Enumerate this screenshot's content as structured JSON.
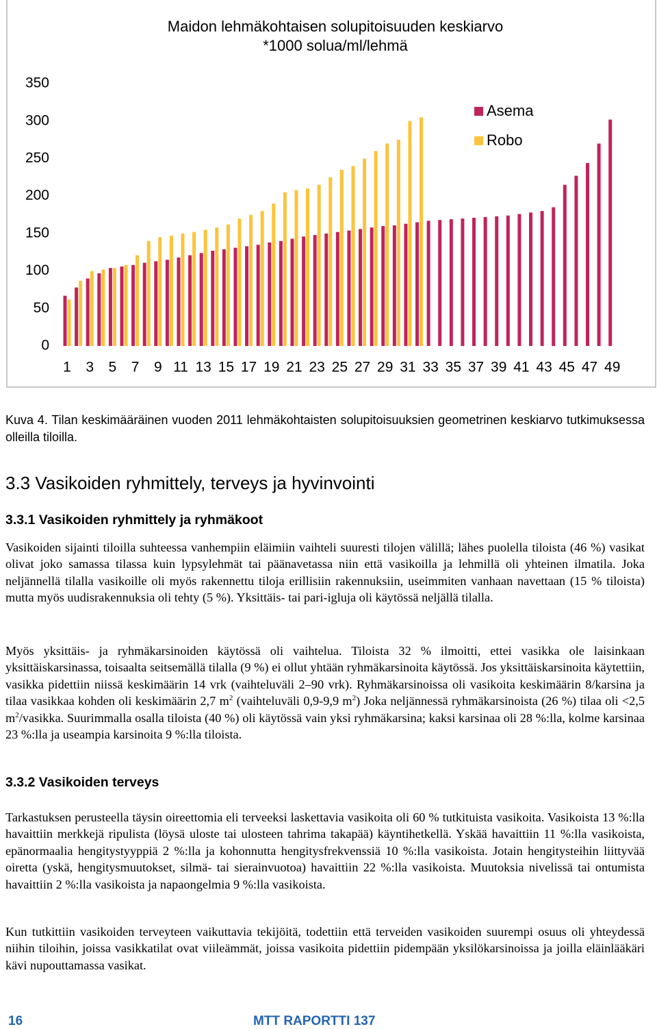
{
  "chart_data": {
    "type": "bar",
    "title": "Maidon lehmäkohtaisen solupitoisuuden keskiarvo",
    "subtitle": "*1000 solua/ml/lehmä",
    "categories": [
      1,
      null,
      3,
      null,
      5,
      null,
      7,
      null,
      9,
      null,
      11,
      null,
      13,
      null,
      15,
      null,
      17,
      null,
      19,
      null,
      21,
      null,
      23,
      null,
      25,
      null,
      27,
      null,
      29,
      null,
      31,
      null,
      33,
      null,
      35,
      null,
      37,
      null,
      39,
      null,
      41,
      null,
      43,
      null,
      45,
      null,
      47,
      null,
      49
    ],
    "series": [
      {
        "name": "Asema",
        "color": "#c0245c",
        "values": [
          67,
          78,
          90,
          97,
          104,
          106,
          108,
          111,
          113,
          115,
          118,
          121,
          124,
          127,
          129,
          131,
          133,
          135,
          138,
          140,
          143,
          146,
          148,
          150,
          152,
          154,
          156,
          158,
          160,
          161,
          163,
          165,
          167,
          168,
          169,
          170,
          171,
          172,
          173,
          174,
          176,
          178,
          180,
          185,
          215,
          227,
          244,
          270,
          302
        ]
      },
      {
        "name": "Robo",
        "color": "#fcc43c",
        "values": [
          62,
          87,
          100,
          102,
          104,
          108,
          121,
          140,
          145,
          147,
          150,
          152,
          155,
          158,
          162,
          170,
          175,
          180,
          190,
          205,
          208,
          210,
          215,
          225,
          235,
          240,
          250,
          260,
          270,
          275,
          300,
          305,
          null,
          null,
          null,
          null,
          null,
          null,
          null,
          null,
          null,
          null,
          null,
          null,
          null,
          null,
          null,
          null,
          null
        ]
      }
    ],
    "ylim": [
      0,
      350
    ],
    "yticks": [
      0,
      50,
      100,
      150,
      200,
      250,
      300,
      350
    ],
    "legend": "upper right"
  },
  "caption": "Kuva 4. Tilan keskimääräinen vuoden 2011 lehmäkohtaisten solupitoisuuksien geometrinen keskiarvo tutkimuksessa olleilla tiloilla.",
  "section": {
    "heading": "3.3 Vasikoiden ryhmittely, terveys ja hyvinvointi",
    "subsections": [
      {
        "heading": "3.3.1 Vasikoiden ryhmittely ja ryhmäkoot",
        "paragraphs": [
          [
            "Vasikoiden sijainti tiloilla suhteessa vanhempiin eläimiin vaihteli suuresti tilojen välillä; lähes puolella tiloista (46 %) vasikat olivat joko samassa tilassa kuin lypsylehmät tai päänavetassa niin että vasikoilla ja lehmillä oli yhteinen ilmatila. Joka neljännellä tilalla vasikoille oli myös rakennettu tiloja erillisiin rakennuksiin, useimmiten vanhaan navettaan (15 % tiloista) mutta myös uudisrakennuksia oli tehty (5 %). Yksittäis- tai pari-igluja oli käytössä neljällä tilalla."
          ],
          [
            "Myös yksittäis- ja ryhmäkarsinoiden käytössä oli vaihtelua. Tiloista 32 % ilmoitti, ettei vasikka ole laisinkaan yksittäiskarsinassa, toisaalta seitsemällä tilalla (9 %) ei ollut yhtään ryhmäkarsinoita käytössä. Jos yksittäiskarsinoita käytettiin, vasikka pidettiin niissä keskimäärin 14 vrk (vaihteluväli 2–90 vrk). Ryhmäkarsinoissa oli vasikoita keskimäärin 8/karsina ja tilaa vasikkaa kohden oli keskimäärin 2,7 m",
            "2",
            " (vaihteluväli 0,9-9,9 m",
            "2",
            ") Joka neljännessä ryhmäkarsinoista (26 %) tilaa oli <2,5 m",
            "2",
            "/vasikka. Suurimmalla osalla tiloista (40 %) oli käytössä vain yksi ryhmäkarsina; kaksi karsinaa oli 28 %:lla, kolme karsinaa 23 %:lla ja useampia karsinoita 9 %:lla tiloista."
          ]
        ]
      },
      {
        "heading": "3.3.2 Vasikoiden terveys",
        "paragraphs": [
          [
            "Tarkastuksen perusteella täysin oireettomia eli terveeksi laskettavia vasikoita oli 60 % tutkituista vasikoita. Vasikoista 13 %:lla havaittiin merkkejä ripulista (löysä uloste tai ulosteen tahrima takapää) käyntihetkellä. Yskää havaittiin 11 %:lla vasikoista, epänormaalia hengitystyyppiä 2 %:lla ja kohonnutta hengitysfrekvenssiä 10 %:lla vasikoista. Jotain hengitysteihin liittyvää oiretta (yskä, hengitysmuutokset, silmä- tai sierainvuotoa) havaittiin 22 %:lla vasikoista. Muutoksia nivelissä tai ontumista havaittiin 2 %:lla vasikoista ja napaongelmia 9 %:lla vasikoista."
          ],
          [
            "Kun tutkittiin vasikoiden terveyteen vaikuttavia tekijöitä, todettiin että terveiden vasikoiden suurempi osuus oli yhteydessä niihin tiloihin, joissa vasikkatilat ovat viileämmät, joissa vasikoita pidettiin pidempään yksilökarsinoissa ja joilla eläinlääkäri kävi nupouttamassa vasikat."
          ]
        ]
      }
    ]
  },
  "footer": {
    "page": "16",
    "publication": "MTT RAPORTTI 137"
  }
}
